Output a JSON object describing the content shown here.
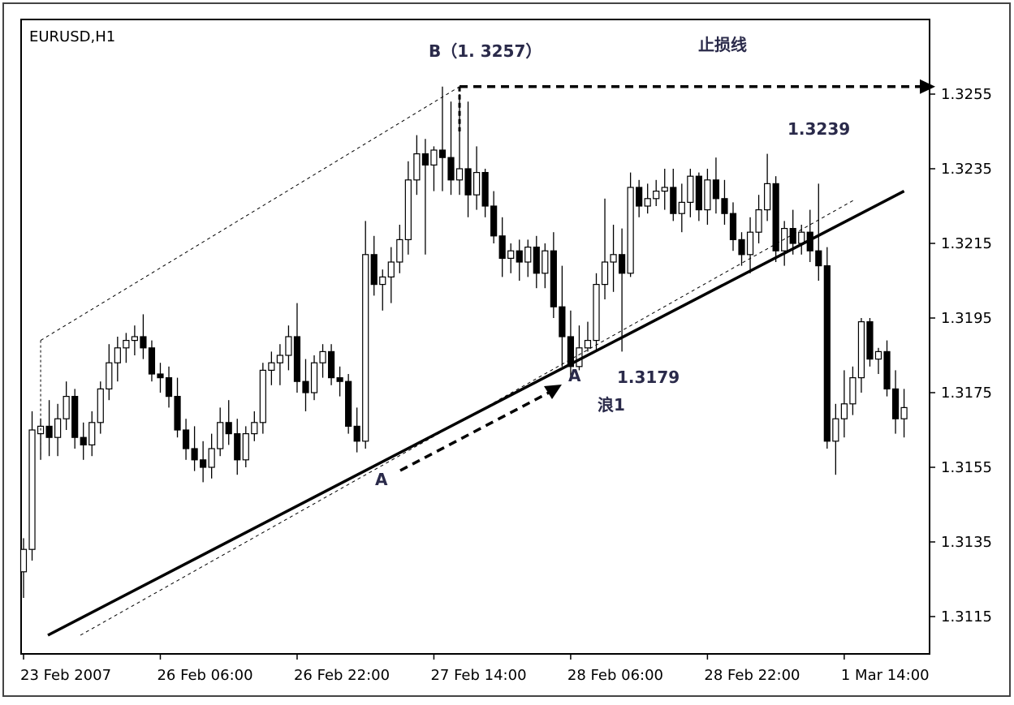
{
  "chart_data": {
    "type": "candlestick",
    "symbol_label": "EURUSD,H1",
    "ylim": [
      1.3105,
      1.3275
    ],
    "y_ticks": [
      "1.3255",
      "1.3235",
      "1.3215",
      "1.3195",
      "1.3175",
      "1.3155",
      "1.3135",
      "1.3115"
    ],
    "x_ticks": [
      "23 Feb 2007",
      "26 Feb 06:00",
      "26 Feb 22:00",
      "27 Feb 14:00",
      "28 Feb 06:00",
      "28 Feb 22:00",
      "1 Mar 14:00"
    ],
    "candles_ohlc": [
      [
        1.3127,
        1.3136,
        1.312,
        1.3133
      ],
      [
        1.3133,
        1.317,
        1.313,
        1.3165
      ],
      [
        1.3164,
        1.3168,
        1.3157,
        1.3166
      ],
      [
        1.3166,
        1.3173,
        1.3158,
        1.3163
      ],
      [
        1.3163,
        1.3172,
        1.3158,
        1.3168
      ],
      [
        1.3168,
        1.3178,
        1.3165,
        1.3174
      ],
      [
        1.3174,
        1.3176,
        1.316,
        1.3163
      ],
      [
        1.3163,
        1.3167,
        1.3157,
        1.3161
      ],
      [
        1.3161,
        1.317,
        1.3158,
        1.3167
      ],
      [
        1.3167,
        1.3178,
        1.3164,
        1.3176
      ],
      [
        1.3176,
        1.3188,
        1.3173,
        1.3183
      ],
      [
        1.3183,
        1.319,
        1.3178,
        1.3187
      ],
      [
        1.3187,
        1.3191,
        1.3183,
        1.3189
      ],
      [
        1.3189,
        1.3193,
        1.3185,
        1.319
      ],
      [
        1.319,
        1.3196,
        1.3184,
        1.3187
      ],
      [
        1.3187,
        1.3189,
        1.3178,
        1.318
      ],
      [
        1.318,
        1.3183,
        1.3175,
        1.3179
      ],
      [
        1.3179,
        1.3182,
        1.3171,
        1.3174
      ],
      [
        1.3174,
        1.3179,
        1.3163,
        1.3165
      ],
      [
        1.3165,
        1.3168,
        1.3157,
        1.316
      ],
      [
        1.316,
        1.3166,
        1.3154,
        1.3157
      ],
      [
        1.3157,
        1.3162,
        1.3151,
        1.3155
      ],
      [
        1.3155,
        1.3164,
        1.3152,
        1.316
      ],
      [
        1.316,
        1.3171,
        1.3158,
        1.3167
      ],
      [
        1.3167,
        1.3173,
        1.3161,
        1.3164
      ],
      [
        1.3164,
        1.3168,
        1.3153,
        1.3157
      ],
      [
        1.3157,
        1.3166,
        1.3155,
        1.3164
      ],
      [
        1.3164,
        1.317,
        1.3162,
        1.3167
      ],
      [
        1.3167,
        1.3183,
        1.3164,
        1.3181
      ],
      [
        1.3181,
        1.3186,
        1.3177,
        1.3183
      ],
      [
        1.3183,
        1.3188,
        1.3177,
        1.3185
      ],
      [
        1.3185,
        1.3193,
        1.3181,
        1.319
      ],
      [
        1.319,
        1.3199,
        1.3175,
        1.3178
      ],
      [
        1.3178,
        1.3184,
        1.317,
        1.3175
      ],
      [
        1.3175,
        1.3185,
        1.3173,
        1.3183
      ],
      [
        1.3183,
        1.3188,
        1.3179,
        1.3186
      ],
      [
        1.3186,
        1.3188,
        1.3177,
        1.3179
      ],
      [
        1.3179,
        1.3182,
        1.3174,
        1.3178
      ],
      [
        1.3178,
        1.318,
        1.3164,
        1.3166
      ],
      [
        1.3166,
        1.3171,
        1.3159,
        1.3162
      ],
      [
        1.3162,
        1.3221,
        1.316,
        1.3212
      ],
      [
        1.3212,
        1.3217,
        1.3201,
        1.3204
      ],
      [
        1.3204,
        1.3208,
        1.3197,
        1.3206
      ],
      [
        1.3206,
        1.3214,
        1.3199,
        1.321
      ],
      [
        1.321,
        1.322,
        1.3207,
        1.3216
      ],
      [
        1.3216,
        1.3237,
        1.3212,
        1.3232
      ],
      [
        1.3232,
        1.3244,
        1.3228,
        1.3239
      ],
      [
        1.3239,
        1.3243,
        1.3212,
        1.3236
      ],
      [
        1.3236,
        1.3241,
        1.3229,
        1.324
      ],
      [
        1.324,
        1.3257,
        1.3229,
        1.3238
      ],
      [
        1.3238,
        1.3253,
        1.3228,
        1.3232
      ],
      [
        1.3232,
        1.3255,
        1.3228,
        1.3235
      ],
      [
        1.3235,
        1.3253,
        1.3222,
        1.3228
      ],
      [
        1.3228,
        1.3241,
        1.3224,
        1.3234
      ],
      [
        1.3234,
        1.3235,
        1.3222,
        1.3225
      ],
      [
        1.3225,
        1.3229,
        1.3215,
        1.3217
      ],
      [
        1.3217,
        1.3222,
        1.3206,
        1.3211
      ],
      [
        1.3211,
        1.3215,
        1.3207,
        1.3213
      ],
      [
        1.3213,
        1.3216,
        1.3205,
        1.321
      ],
      [
        1.321,
        1.3216,
        1.3206,
        1.3214
      ],
      [
        1.3214,
        1.3217,
        1.3203,
        1.3207
      ],
      [
        1.3207,
        1.3215,
        1.3203,
        1.3213
      ],
      [
        1.3213,
        1.3218,
        1.3195,
        1.3198
      ],
      [
        1.3198,
        1.3209,
        1.3182,
        1.319
      ],
      [
        1.319,
        1.3197,
        1.3179,
        1.3182
      ],
      [
        1.3182,
        1.3193,
        1.3181,
        1.3187
      ],
      [
        1.3187,
        1.3194,
        1.3186,
        1.3189
      ],
      [
        1.3189,
        1.3207,
        1.3186,
        1.3204
      ],
      [
        1.3204,
        1.3227,
        1.32,
        1.321
      ],
      [
        1.321,
        1.322,
        1.3202,
        1.3212
      ],
      [
        1.3212,
        1.3219,
        1.3186,
        1.3207
      ],
      [
        1.3207,
        1.3234,
        1.3206,
        1.323
      ],
      [
        1.323,
        1.3232,
        1.3222,
        1.3225
      ],
      [
        1.3225,
        1.3231,
        1.3223,
        1.3227
      ],
      [
        1.3227,
        1.3232,
        1.3225,
        1.3229
      ],
      [
        1.3229,
        1.3235,
        1.3224,
        1.323
      ],
      [
        1.323,
        1.3235,
        1.3221,
        1.3223
      ],
      [
        1.3223,
        1.3231,
        1.3218,
        1.3226
      ],
      [
        1.3226,
        1.3235,
        1.3222,
        1.3233
      ],
      [
        1.3233,
        1.3234,
        1.3221,
        1.3224
      ],
      [
        1.3224,
        1.3235,
        1.322,
        1.3232
      ],
      [
        1.3232,
        1.3238,
        1.3223,
        1.3227
      ],
      [
        1.3227,
        1.3232,
        1.322,
        1.3223
      ],
      [
        1.3223,
        1.3226,
        1.3213,
        1.3216
      ],
      [
        1.3216,
        1.3218,
        1.3209,
        1.3212
      ],
      [
        1.3212,
        1.3222,
        1.3207,
        1.3218
      ],
      [
        1.3218,
        1.3228,
        1.3215,
        1.3224
      ],
      [
        1.3224,
        1.3239,
        1.3221,
        1.3231
      ],
      [
        1.3231,
        1.3233,
        1.321,
        1.3213
      ],
      [
        1.3213,
        1.3221,
        1.3209,
        1.3219
      ],
      [
        1.3219,
        1.3224,
        1.3212,
        1.3215
      ],
      [
        1.3215,
        1.322,
        1.3212,
        1.3218
      ],
      [
        1.3218,
        1.3224,
        1.321,
        1.3213
      ],
      [
        1.3213,
        1.3231,
        1.3205,
        1.3209
      ],
      [
        1.3209,
        1.3214,
        1.316,
        1.3162
      ],
      [
        1.3162,
        1.3172,
        1.3153,
        1.3168
      ],
      [
        1.3168,
        1.3181,
        1.3163,
        1.3172
      ],
      [
        1.3172,
        1.3182,
        1.3169,
        1.3179
      ],
      [
        1.3179,
        1.3195,
        1.3175,
        1.3194
      ],
      [
        1.3194,
        1.3195,
        1.3182,
        1.3184
      ],
      [
        1.3184,
        1.3187,
        1.318,
        1.3186
      ],
      [
        1.3186,
        1.3189,
        1.3174,
        1.3176
      ],
      [
        1.3176,
        1.3181,
        1.3164,
        1.3168
      ],
      [
        1.3168,
        1.3176,
        1.3163,
        1.3171
      ]
    ],
    "annotations": [
      {
        "name": "label-b-high",
        "text": "B（1. 3257）"
      },
      {
        "name": "label-stop-line",
        "text": "止损线"
      },
      {
        "name": "label-high-1-3239",
        "text": "1.3239"
      },
      {
        "name": "label-low-1-3179",
        "text": "1.3179"
      },
      {
        "name": "label-wave-1",
        "text": "浪1"
      },
      {
        "name": "label-a-lower",
        "text": "A"
      },
      {
        "name": "label-a-upper",
        "text": "A"
      }
    ],
    "trendline": {
      "from": [
        0,
        1.311
      ],
      "to": [
        103,
        1.3229
      ]
    },
    "stop_line_price": 1.3257,
    "colors": {
      "background": "#ffffff",
      "candle": "#000000",
      "annotation": "#2a2a4a"
    }
  }
}
